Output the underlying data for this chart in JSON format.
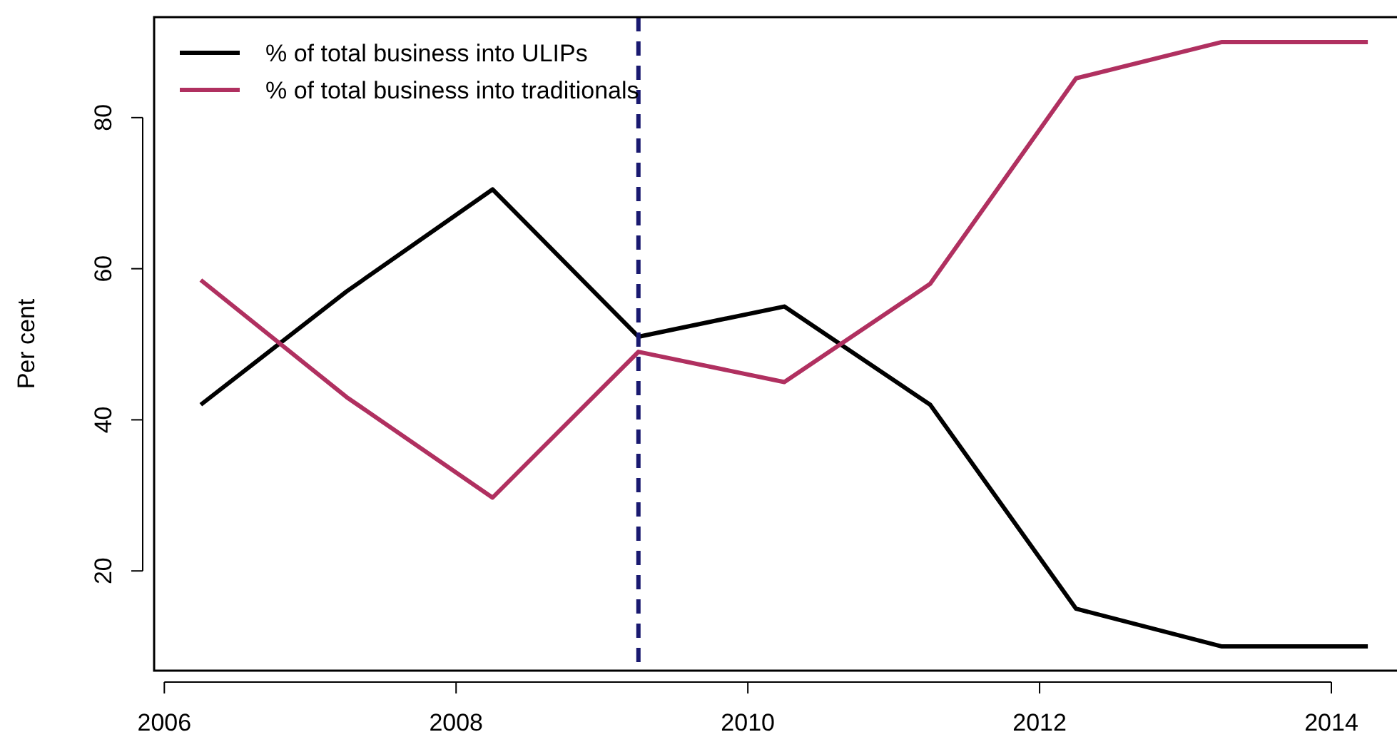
{
  "chart_data": {
    "type": "line",
    "ylabel": "Per cent",
    "x": [
      2006.25,
      2007.25,
      2008.25,
      2009.25,
      2010.25,
      2011.25,
      2012.25,
      2013.25,
      2014.25
    ],
    "series": [
      {
        "name": "% of total business into ULIPs",
        "color": "#000000",
        "values": [
          42,
          57,
          70.5,
          51,
          55,
          42,
          15,
          10,
          10
        ]
      },
      {
        "name": "% of total business into traditionals",
        "color": "#b03060",
        "values": [
          58.5,
          43,
          29.7,
          49,
          45,
          58,
          85.2,
          90,
          90
        ]
      }
    ],
    "xlim": [
      2005.93,
      2014.45
    ],
    "xticks": [
      2006,
      2008,
      2010,
      2012,
      2014
    ],
    "ylim": [
      6.8,
      93.3
    ],
    "yticks": [
      20,
      40,
      60,
      80
    ],
    "ref_lines": [
      {
        "axis": "x",
        "value": 2009.25,
        "color": "#191970",
        "line_style": "dashed"
      }
    ],
    "legend": "top left",
    "grid": false,
    "marker": "none",
    "line_style": "solid"
  }
}
